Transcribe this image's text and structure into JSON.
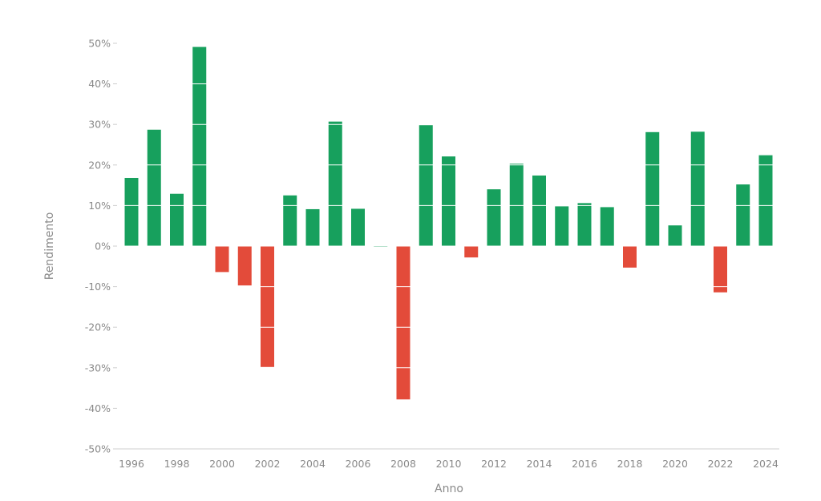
{
  "chart_data": {
    "type": "bar",
    "title": "",
    "xlabel": "Anno",
    "ylabel": "Rendimento",
    "ylim": [
      -50,
      50
    ],
    "y_ticks": [
      50,
      40,
      30,
      20,
      10,
      0,
      -10,
      -20,
      -30,
      -40,
      -50
    ],
    "y_tick_format": "%",
    "x_tick_labels": [
      "1996",
      "1998",
      "2000",
      "2002",
      "2004",
      "2006",
      "2008",
      "2010",
      "2012",
      "2014",
      "2016",
      "2018",
      "2020",
      "2022",
      "2024"
    ],
    "categories": [
      "1996",
      "1997",
      "1998",
      "1999",
      "2000",
      "2001",
      "2002",
      "2003",
      "2004",
      "2005",
      "2006",
      "2007",
      "2008",
      "2009",
      "2010",
      "2011",
      "2012",
      "2013",
      "2014",
      "2015",
      "2016",
      "2017",
      "2018",
      "2019",
      "2020",
      "2021",
      "2022",
      "2023",
      "2024"
    ],
    "values": [
      16.8,
      28.7,
      12.9,
      49.1,
      -6.4,
      -9.7,
      -29.8,
      12.5,
      9.1,
      30.7,
      9.2,
      0.0,
      -37.8,
      29.8,
      22.1,
      -2.8,
      14.0,
      20.3,
      17.4,
      9.8,
      10.6,
      9.6,
      -5.3,
      28.1,
      5.1,
      28.2,
      -11.4,
      15.2,
      22.4
    ],
    "colors": {
      "positive": "#17a05d",
      "negative": "#e34b3a",
      "gridline": "#ffffff",
      "axis": "#cfcfcf",
      "text": "#8a8a8a"
    },
    "grid": "white lines over bars",
    "legend": "none"
  }
}
